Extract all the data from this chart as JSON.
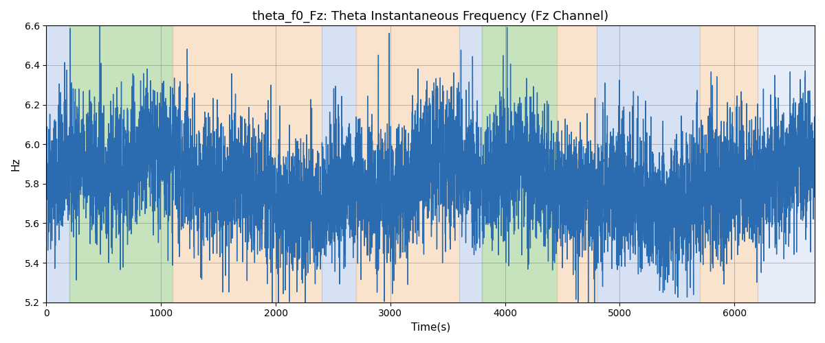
{
  "title": "theta_f0_Fz: Theta Instantaneous Frequency (Fz Channel)",
  "xlabel": "Time(s)",
  "ylabel": "Hz",
  "ylim": [
    5.2,
    6.6
  ],
  "xlim": [
    0,
    6700
  ],
  "line_color": "#2b6cb0",
  "line_width": 1.0,
  "grid": true,
  "figsize": [
    12,
    5
  ],
  "dpi": 100,
  "bg_regions": [
    {
      "xmin": 0,
      "xmax": 200,
      "color": "#aec6e8",
      "alpha": 0.5
    },
    {
      "xmin": 200,
      "xmax": 1100,
      "color": "#90c97f",
      "alpha": 0.5
    },
    {
      "xmin": 1100,
      "xmax": 2400,
      "color": "#f5c99a",
      "alpha": 0.5
    },
    {
      "xmin": 2400,
      "xmax": 2700,
      "color": "#aec6e8",
      "alpha": 0.5
    },
    {
      "xmin": 2700,
      "xmax": 3600,
      "color": "#f5c99a",
      "alpha": 0.5
    },
    {
      "xmin": 3600,
      "xmax": 3800,
      "color": "#aec6e8",
      "alpha": 0.5
    },
    {
      "xmin": 3800,
      "xmax": 4450,
      "color": "#90c97f",
      "alpha": 0.5
    },
    {
      "xmin": 4450,
      "xmax": 4800,
      "color": "#f5c99a",
      "alpha": 0.5
    },
    {
      "xmin": 4800,
      "xmax": 5700,
      "color": "#aec6e8",
      "alpha": 0.5
    },
    {
      "xmin": 5700,
      "xmax": 6200,
      "color": "#f5c99a",
      "alpha": 0.5
    },
    {
      "xmin": 6200,
      "xmax": 6700,
      "color": "#aec6e8",
      "alpha": 0.3
    }
  ],
  "seed": 42,
  "n_points": 6700,
  "base_freq": 5.8,
  "noise_std": 0.18
}
